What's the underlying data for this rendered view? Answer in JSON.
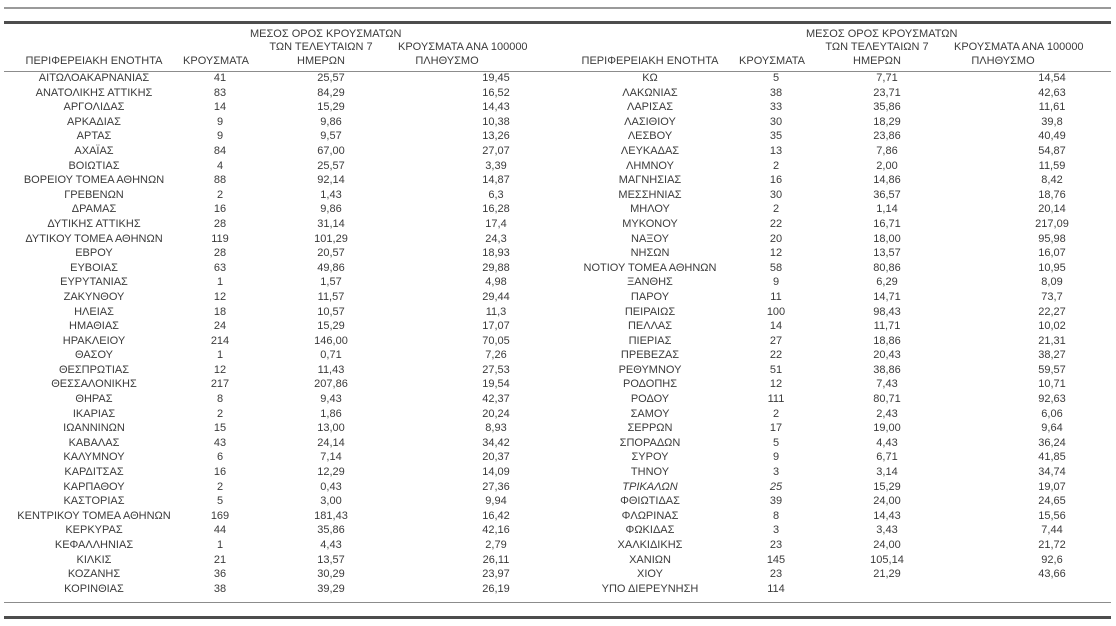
{
  "columns": {
    "region": "ΠΕΡΙΦΕΡΕΙΑΚΗ ΕΝΟΤΗΤΑ",
    "cases": "ΚΡΟΥΣΜΑΤΑ",
    "avg7_line1": "ΜΕΣΟΣ ΟΡΟΣ ΚΡΟΥΣΜΑΤΩΝ",
    "avg7_line2": "ΤΩΝ ΤΕΛΕΥΤΑΙΩΝ 7",
    "avg7_line3": "ΗΜΕΡΩΝ",
    "per100k_line1": "ΚΡΟΥΣΜΑΤΑ ΑΝΑ 100000",
    "per100k_line2": "ΠΛΗΘΥΣΜΟ"
  },
  "left_table": {
    "rows": [
      {
        "region": "ΑΙΤΩΛΟΑΚΑΡΝΑΝΙΑΣ",
        "cases": "41",
        "avg7": "25,57",
        "per100k": "19,45"
      },
      {
        "region": "ΑΝΑΤΟΛΙΚΗΣ ΑΤΤΙΚΗΣ",
        "cases": "83",
        "avg7": "84,29",
        "per100k": "16,52"
      },
      {
        "region": "ΑΡΓΟΛΙΔΑΣ",
        "cases": "14",
        "avg7": "15,29",
        "per100k": "14,43"
      },
      {
        "region": "ΑΡΚΑΔΙΑΣ",
        "cases": "9",
        "avg7": "9,86",
        "per100k": "10,38"
      },
      {
        "region": "ΑΡΤΑΣ",
        "cases": "9",
        "avg7": "9,57",
        "per100k": "13,26"
      },
      {
        "region": "ΑΧΑΪΑΣ",
        "cases": "84",
        "avg7": "67,00",
        "per100k": "27,07"
      },
      {
        "region": "ΒΟΙΩΤΙΑΣ",
        "cases": "4",
        "avg7": "25,57",
        "per100k": "3,39"
      },
      {
        "region": "ΒΟΡΕΙΟΥ ΤΟΜΕΑ ΑΘΗΝΩΝ",
        "cases": "88",
        "avg7": "92,14",
        "per100k": "14,87"
      },
      {
        "region": "ΓΡΕΒΕΝΩΝ",
        "cases": "2",
        "avg7": "1,43",
        "per100k": "6,3"
      },
      {
        "region": "ΔΡΑΜΑΣ",
        "cases": "16",
        "avg7": "9,86",
        "per100k": "16,28"
      },
      {
        "region": "ΔΥΤΙΚΗΣ ΑΤΤΙΚΗΣ",
        "cases": "28",
        "avg7": "31,14",
        "per100k": "17,4"
      },
      {
        "region": "ΔΥΤΙΚΟΥ ΤΟΜΕΑ ΑΘΗΝΩΝ",
        "cases": "119",
        "avg7": "101,29",
        "per100k": "24,3"
      },
      {
        "region": "ΕΒΡΟΥ",
        "cases": "28",
        "avg7": "20,57",
        "per100k": "18,93"
      },
      {
        "region": "ΕΥΒΟΙΑΣ",
        "cases": "63",
        "avg7": "49,86",
        "per100k": "29,88"
      },
      {
        "region": "ΕΥΡΥΤΑΝΙΑΣ",
        "cases": "1",
        "avg7": "1,57",
        "per100k": "4,98"
      },
      {
        "region": "ΖΑΚΥΝΘΟΥ",
        "cases": "12",
        "avg7": "11,57",
        "per100k": "29,44"
      },
      {
        "region": "ΗΛΕΙΑΣ",
        "cases": "18",
        "avg7": "10,57",
        "per100k": "11,3"
      },
      {
        "region": "ΗΜΑΘΙΑΣ",
        "cases": "24",
        "avg7": "15,29",
        "per100k": "17,07"
      },
      {
        "region": "ΗΡΑΚΛΕΙΟΥ",
        "cases": "214",
        "avg7": "146,00",
        "per100k": "70,05"
      },
      {
        "region": "ΘΑΣΟΥ",
        "cases": "1",
        "avg7": "0,71",
        "per100k": "7,26"
      },
      {
        "region": "ΘΕΣΠΡΩΤΙΑΣ",
        "cases": "12",
        "avg7": "11,43",
        "per100k": "27,53"
      },
      {
        "region": "ΘΕΣΣΑΛΟΝΙΚΗΣ",
        "cases": "217",
        "avg7": "207,86",
        "per100k": "19,54"
      },
      {
        "region": "ΘΗΡΑΣ",
        "cases": "8",
        "avg7": "9,43",
        "per100k": "42,37"
      },
      {
        "region": "ΙΚΑΡΙΑΣ",
        "cases": "2",
        "avg7": "1,86",
        "per100k": "20,24"
      },
      {
        "region": "ΙΩΑΝΝΙΝΩΝ",
        "cases": "15",
        "avg7": "13,00",
        "per100k": "8,93"
      },
      {
        "region": "ΚΑΒΑΛΑΣ",
        "cases": "43",
        "avg7": "24,14",
        "per100k": "34,42"
      },
      {
        "region": "ΚΑΛΥΜΝΟΥ",
        "cases": "6",
        "avg7": "7,14",
        "per100k": "20,37"
      },
      {
        "region": "ΚΑΡΔΙΤΣΑΣ",
        "cases": "16",
        "avg7": "12,29",
        "per100k": "14,09"
      },
      {
        "region": "ΚΑΡΠΑΘΟΥ",
        "cases": "2",
        "avg7": "0,43",
        "per100k": "27,36"
      },
      {
        "region": "ΚΑΣΤΟΡΙΑΣ",
        "cases": "5",
        "avg7": "3,00",
        "per100k": "9,94"
      },
      {
        "region": "ΚΕΝΤΡΙΚΟΥ ΤΟΜΕΑ ΑΘΗΝΩΝ",
        "cases": "169",
        "avg7": "181,43",
        "per100k": "16,42"
      },
      {
        "region": "ΚΕΡΚΥΡΑΣ",
        "cases": "44",
        "avg7": "35,86",
        "per100k": "42,16"
      },
      {
        "region": "ΚΕΦΑΛΛΗΝΙΑΣ",
        "cases": "1",
        "avg7": "4,43",
        "per100k": "2,79"
      },
      {
        "region": "ΚΙΛΚΙΣ",
        "cases": "21",
        "avg7": "13,57",
        "per100k": "26,11"
      },
      {
        "region": "ΚΟΖΑΝΗΣ",
        "cases": "36",
        "avg7": "30,29",
        "per100k": "23,97"
      },
      {
        "region": "ΚΟΡΙΝΘΙΑΣ",
        "cases": "38",
        "avg7": "39,29",
        "per100k": "26,19"
      }
    ]
  },
  "right_table": {
    "rows": [
      {
        "region": "ΚΩ",
        "cases": "5",
        "avg7": "7,71",
        "per100k": "14,54"
      },
      {
        "region": "ΛΑΚΩΝΙΑΣ",
        "cases": "38",
        "avg7": "23,71",
        "per100k": "42,63"
      },
      {
        "region": "ΛΑΡΙΣΑΣ",
        "cases": "33",
        "avg7": "35,86",
        "per100k": "11,61"
      },
      {
        "region": "ΛΑΣΙΘΙΟΥ",
        "cases": "30",
        "avg7": "18,29",
        "per100k": "39,8"
      },
      {
        "region": "ΛΕΣΒΟΥ",
        "cases": "35",
        "avg7": "23,86",
        "per100k": "40,49"
      },
      {
        "region": "ΛΕΥΚΑΔΑΣ",
        "cases": "13",
        "avg7": "7,86",
        "per100k": "54,87"
      },
      {
        "region": "ΛΗΜΝΟΥ",
        "cases": "2",
        "avg7": "2,00",
        "per100k": "11,59"
      },
      {
        "region": "ΜΑΓΝΗΣΙΑΣ",
        "cases": "16",
        "avg7": "14,86",
        "per100k": "8,42"
      },
      {
        "region": "ΜΕΣΣΗΝΙΑΣ",
        "cases": "30",
        "avg7": "36,57",
        "per100k": "18,76"
      },
      {
        "region": "ΜΗΛΟΥ",
        "cases": "2",
        "avg7": "1,14",
        "per100k": "20,14"
      },
      {
        "region": "ΜΥΚΟΝΟΥ",
        "cases": "22",
        "avg7": "16,71",
        "per100k": "217,09"
      },
      {
        "region": "ΝΑΞΟΥ",
        "cases": "20",
        "avg7": "18,00",
        "per100k": "95,98"
      },
      {
        "region": "ΝΗΣΩΝ",
        "cases": "12",
        "avg7": "13,57",
        "per100k": "16,07"
      },
      {
        "region": "ΝΟΤΙΟΥ ΤΟΜΕΑ ΑΘΗΝΩΝ",
        "cases": "58",
        "avg7": "80,86",
        "per100k": "10,95"
      },
      {
        "region": "ΞΑΝΘΗΣ",
        "cases": "9",
        "avg7": "6,29",
        "per100k": "8,09"
      },
      {
        "region": "ΠΑΡΟΥ",
        "cases": "11",
        "avg7": "14,71",
        "per100k": "73,7"
      },
      {
        "region": "ΠΕΙΡΑΙΩΣ",
        "cases": "100",
        "avg7": "98,43",
        "per100k": "22,27"
      },
      {
        "region": "ΠΕΛΛΑΣ",
        "cases": "14",
        "avg7": "11,71",
        "per100k": "10,02"
      },
      {
        "region": "ΠΙΕΡΙΑΣ",
        "cases": "27",
        "avg7": "18,86",
        "per100k": "21,31"
      },
      {
        "region": "ΠΡΕΒΕΖΑΣ",
        "cases": "22",
        "avg7": "20,43",
        "per100k": "38,27"
      },
      {
        "region": "ΡΕΘΥΜΝΟΥ",
        "cases": "51",
        "avg7": "38,86",
        "per100k": "59,57"
      },
      {
        "region": "ΡΟΔΟΠΗΣ",
        "cases": "12",
        "avg7": "7,43",
        "per100k": "10,71"
      },
      {
        "region": "ΡΟΔΟΥ",
        "cases": "111",
        "avg7": "80,71",
        "per100k": "92,63"
      },
      {
        "region": "ΣΑΜΟΥ",
        "cases": "2",
        "avg7": "2,43",
        "per100k": "6,06"
      },
      {
        "region": "ΣΕΡΡΩΝ",
        "cases": "17",
        "avg7": "19,00",
        "per100k": "9,64"
      },
      {
        "region": "ΣΠΟΡΑΔΩΝ",
        "cases": "5",
        "avg7": "4,43",
        "per100k": "36,24"
      },
      {
        "region": "ΣΥΡΟΥ",
        "cases": "9",
        "avg7": "6,71",
        "per100k": "41,85"
      },
      {
        "region": "ΤΗΝΟΥ",
        "cases": "3",
        "avg7": "3,14",
        "per100k": "34,74"
      },
      {
        "region": "ΤΡΙΚΑΛΩΝ",
        "cases": "25",
        "avg7": "15,29",
        "per100k": "19,07",
        "italic": true
      },
      {
        "region": "ΦΘΙΩΤΙΔΑΣ",
        "cases": "39",
        "avg7": "24,00",
        "per100k": "24,65"
      },
      {
        "region": "ΦΛΩΡΙΝΑΣ",
        "cases": "8",
        "avg7": "14,43",
        "per100k": "15,56"
      },
      {
        "region": "ΦΩΚΙΔΑΣ",
        "cases": "3",
        "avg7": "3,43",
        "per100k": "7,44"
      },
      {
        "region": "ΧΑΛΚΙΔΙΚΗΣ",
        "cases": "23",
        "avg7": "24,00",
        "per100k": "21,72"
      },
      {
        "region": "ΧΑΝΙΩΝ",
        "cases": "145",
        "avg7": "105,14",
        "per100k": "92,6"
      },
      {
        "region": "ΧΙΟΥ",
        "cases": "23",
        "avg7": "21,29",
        "per100k": "43,66"
      },
      {
        "region": "ΥΠΟ ΔΙΕΡΕΥΝΗΣΗ",
        "cases": "114",
        "avg7": "",
        "per100k": ""
      }
    ]
  }
}
